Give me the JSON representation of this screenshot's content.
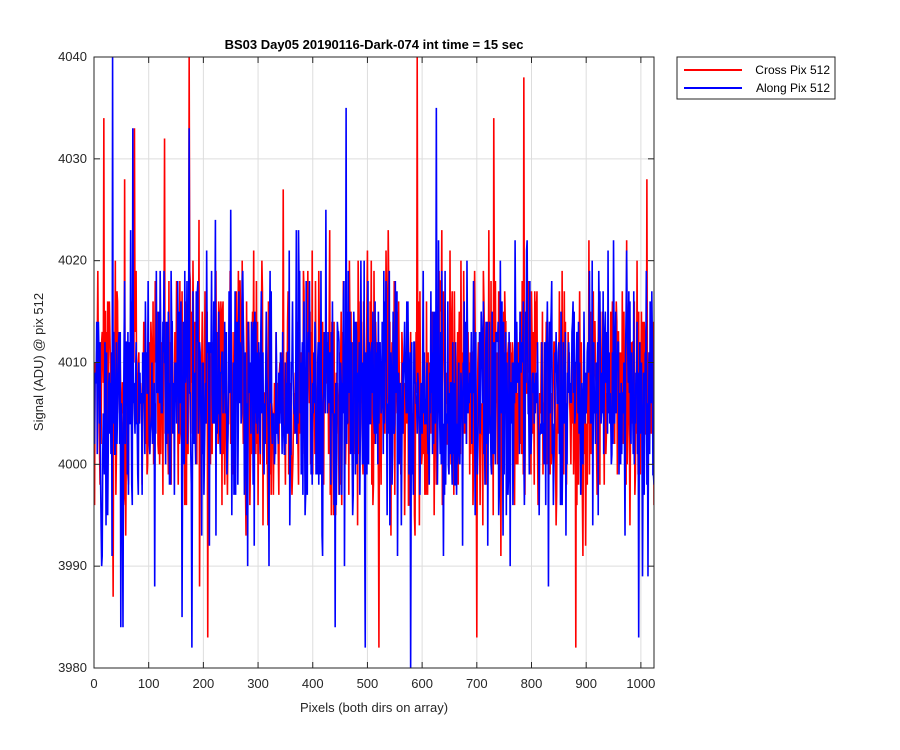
{
  "chart_data": {
    "type": "line",
    "title": "BS03 Day05 20190116-Dark-074 int time = 15 sec",
    "xlabel": "Pixels (both dirs on array)",
    "ylabel": "Signal (ADU) @ pix 512",
    "xlim": [
      0,
      1024
    ],
    "ylim": [
      3980,
      4040
    ],
    "xticks": [
      "0",
      "100",
      "200",
      "300",
      "400",
      "500",
      "600",
      "700",
      "800",
      "900",
      "1000"
    ],
    "yticks": [
      "3980",
      "3990",
      "4000",
      "4010",
      "4020",
      "4030",
      "4040"
    ],
    "grid": true,
    "legend_position": "outside-top-right",
    "series": [
      {
        "name": "Cross Pix 512",
        "color": "#ff0000",
        "sample_count": 1024,
        "mean": 4007.5,
        "noise_range": [
          3982,
          4040
        ],
        "spikes": [
          [
            17,
            4034
          ],
          [
            34,
            3987
          ],
          [
            55,
            4028
          ],
          [
            73,
            4033
          ],
          [
            128,
            4032
          ],
          [
            173,
            4040
          ],
          [
            192,
            3988
          ],
          [
            207,
            3983
          ],
          [
            345,
            4027
          ],
          [
            520,
            3982
          ],
          [
            590,
            4040
          ],
          [
            699,
            3983
          ],
          [
            730,
            4034
          ],
          [
            785,
            4038
          ],
          [
            880,
            3982
          ],
          [
            1010,
            4028
          ]
        ]
      },
      {
        "name": "Along Pix 512",
        "color": "#0000ff",
        "sample_count": 1024,
        "mean": 4007.0,
        "noise_range": [
          3980,
          4040
        ],
        "spikes": [
          [
            13,
            3990
          ],
          [
            33,
            4040
          ],
          [
            48,
            3984
          ],
          [
            52,
            3984
          ],
          [
            70,
            4033
          ],
          [
            110,
            3988
          ],
          [
            160,
            3985
          ],
          [
            173,
            4033
          ],
          [
            178,
            3982
          ],
          [
            440,
            3984
          ],
          [
            460,
            4035
          ],
          [
            495,
            3982
          ],
          [
            578,
            3980
          ],
          [
            625,
            4035
          ],
          [
            830,
            3988
          ],
          [
            995,
            3983
          ],
          [
            1002,
            3989
          ],
          [
            1012,
            3989
          ]
        ]
      }
    ]
  }
}
